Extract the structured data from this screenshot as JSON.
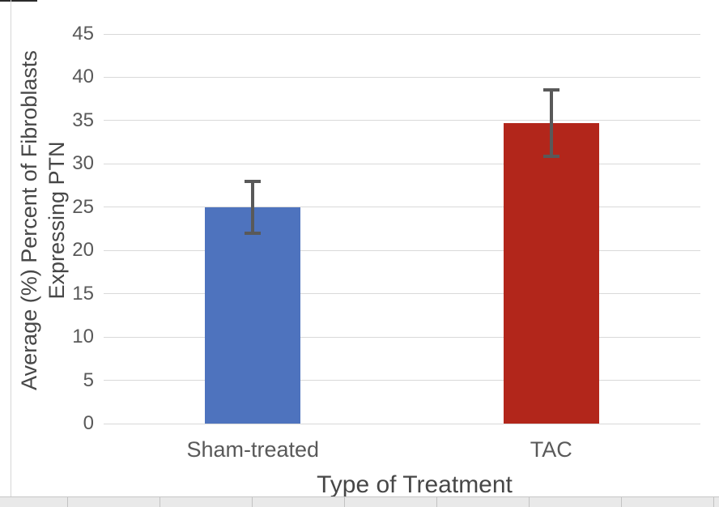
{
  "chart_data": {
    "type": "bar",
    "title": "",
    "categories": [
      "Sham-treated",
      "TAC"
    ],
    "values": [
      25,
      34.7
    ],
    "error_bars": [
      3,
      3.8
    ],
    "xlabel": "Type of Treatment",
    "ylabel": "Average (%) Percent of Fibroblasts Expressing PTN",
    "ylabel_lines": [
      "Average (%) Percent of Fibroblasts",
      "Expressing PTN"
    ],
    "ylim": [
      0,
      45
    ],
    "ytick_step": 5,
    "yticks": [
      0,
      5,
      10,
      15,
      20,
      25,
      30,
      35,
      40,
      45
    ],
    "legend_position": "none",
    "grid": "horizontal",
    "colors": {
      "bar_sham_treated": "#4e73be",
      "bar_tac": "#b2261b",
      "gridline": "#d9d9d9",
      "tick_text": "#595959",
      "category_text": "#595959",
      "axis_title_text": "#474747",
      "error_bar": "#595959"
    }
  }
}
